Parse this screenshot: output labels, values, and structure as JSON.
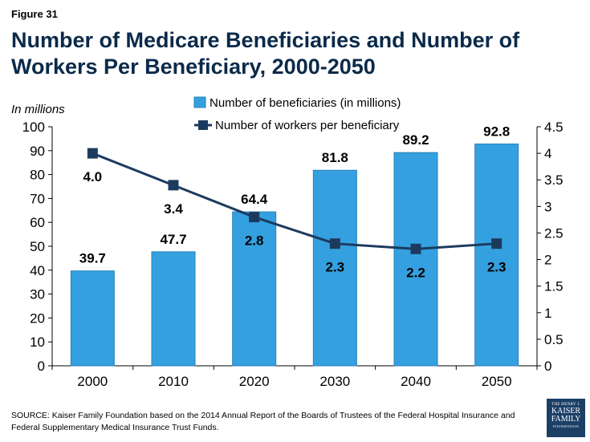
{
  "figure_label": "Figure 31",
  "title": "Number of Medicare Beneficiaries and Number of Workers Per Beneficiary, 2000-2050",
  "source": "SOURCE:  Kaiser Family Foundation based on the 2014 Annual Report of the Boards of Trustees of the Federal Hospital Insurance and Federal Supplementary Medical Insurance Trust Funds.",
  "logo": {
    "line1": "THE HENRY J.",
    "line2": "KAISER",
    "line3": "FAMILY",
    "line4": "FOUNDATION"
  },
  "colors": {
    "bar": "#34a0e0",
    "bar_stroke": "#2a82bb",
    "line": "#1c3a5e",
    "title": "#0b2a4a"
  },
  "chart_data": {
    "type": "bar",
    "categories": [
      "2000",
      "2010",
      "2020",
      "2030",
      "2040",
      "2050"
    ],
    "y_left_label": "In millions",
    "y_left_lim": [
      0,
      100
    ],
    "y_left_ticks": [
      "0",
      "10",
      "20",
      "30",
      "40",
      "50",
      "60",
      "70",
      "80",
      "90",
      "100"
    ],
    "y_right_lim": [
      0,
      4.5
    ],
    "y_right_ticks": [
      "0",
      "0.5",
      "1",
      "1.5",
      "2",
      "2.5",
      "3",
      "3.5",
      "4",
      "4.5"
    ],
    "legend_position": "top",
    "series": [
      {
        "name": "Number of beneficiaries (in millions)",
        "type": "bar",
        "axis": "left",
        "values": [
          39.7,
          47.7,
          64.4,
          81.8,
          89.2,
          92.8
        ],
        "labels": [
          "39.7",
          "47.7",
          "64.4",
          "81.8",
          "89.2",
          "92.8"
        ]
      },
      {
        "name": "Number of workers per beneficiary",
        "type": "line",
        "axis": "right",
        "values": [
          4.0,
          3.4,
          2.8,
          2.3,
          2.2,
          2.3
        ],
        "labels": [
          "4.0",
          "3.4",
          "2.8",
          "2.3",
          "2.2",
          "2.3"
        ]
      }
    ]
  }
}
